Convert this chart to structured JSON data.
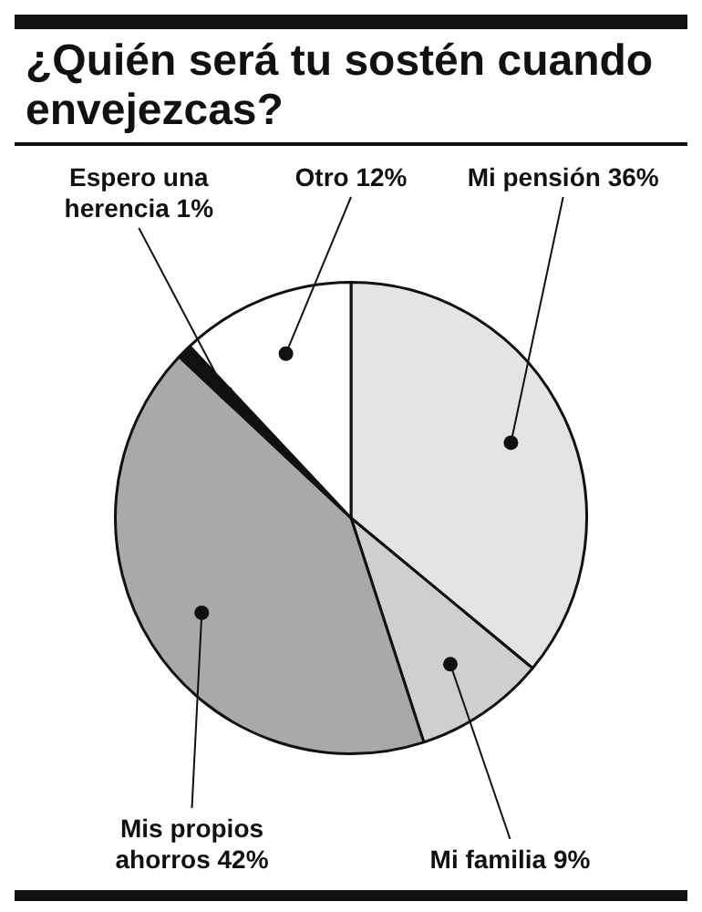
{
  "chart_data": {
    "type": "pie",
    "title": "¿Quién será tu sostén cuando envejezcas?",
    "categories": [
      "Mi pensión",
      "Mi familia",
      "Mis propios ahorros",
      "Espero una herencia",
      "Otro"
    ],
    "values": [
      36,
      9,
      42,
      1,
      12
    ],
    "colors": [
      "#e4e4e4",
      "#cfcfcf",
      "#a9a9a9",
      "#111111",
      "#ffffff"
    ],
    "value_labels": [
      "36%",
      "9%",
      "42%",
      "1%",
      "12%"
    ],
    "legend": false
  }
}
